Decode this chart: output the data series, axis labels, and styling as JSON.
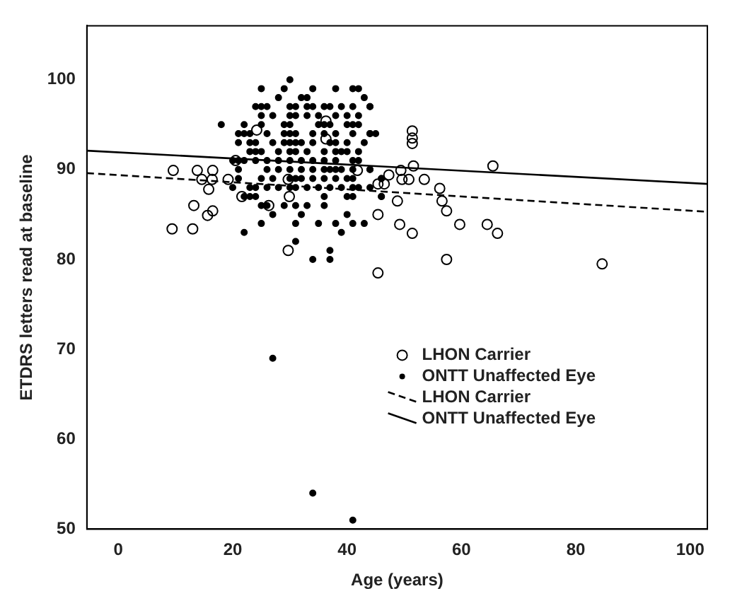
{
  "chart_data": {
    "type": "scatter",
    "xlabel": "Age (years)",
    "ylabel": "ETDRS letters read at baseline",
    "xlim": [
      -5.5,
      103
    ],
    "xticks": [
      0,
      20,
      40,
      60,
      80,
      100
    ],
    "ylim": [
      50,
      106
    ],
    "yticks": [
      50,
      60,
      70,
      80,
      90,
      100
    ],
    "grid": false,
    "legend": "bottom right",
    "series": [
      {
        "name": "LHON Carrier",
        "marker": "circle",
        "color": "#000000",
        "x": [
          9.6,
          13.8,
          16.5,
          14.6,
          16.4,
          15.8,
          19.2,
          20.5,
          13.2,
          16.5,
          15.6,
          9.4,
          13.0,
          21.6,
          26.3,
          29.7,
          29.9,
          29.7,
          24.2,
          36.3,
          36.3,
          41.8,
          45.4,
          46.5,
          47.3,
          45.4,
          45.4,
          51.4,
          51.4,
          51.4,
          51.6,
          65.5,
          49.4,
          49.6,
          50.8,
          53.5,
          56.2,
          56.6,
          57.4,
          48.8,
          49.2,
          51.4,
          59.7,
          64.5,
          66.3,
          57.4,
          84.6
        ],
        "values": [
          89.9,
          89.9,
          89.9,
          88.9,
          88.9,
          87.8,
          88.9,
          91,
          86,
          85.4,
          84.9,
          83.4,
          83.4,
          87,
          86,
          88.9,
          87,
          81,
          94.4,
          95.4,
          93.4,
          89.9,
          88.4,
          88.4,
          89.4,
          85,
          78.5,
          94.3,
          93.5,
          92.9,
          90.4,
          90.4,
          89.9,
          88.9,
          88.9,
          88.9,
          87.9,
          86.5,
          85.4,
          86.5,
          83.9,
          82.9,
          83.9,
          83.9,
          82.9,
          80,
          79.5
        ]
      },
      {
        "name": "ONTT Unaffected Eye",
        "marker": "circle",
        "color": "#000000",
        "x": [
          30,
          25,
          29,
          34,
          38,
          41,
          42,
          28,
          32,
          33,
          43,
          24,
          25,
          26,
          30,
          31,
          33,
          34,
          36,
          37,
          39,
          41,
          44,
          25,
          27,
          30,
          31,
          33,
          35,
          38,
          40,
          42,
          18,
          22,
          25,
          29,
          30,
          35,
          36,
          37,
          40,
          41,
          42,
          21,
          22,
          23,
          26,
          29,
          30,
          31,
          34,
          36,
          38,
          41,
          44,
          45,
          21,
          23,
          24,
          27,
          29,
          30,
          31,
          32,
          34,
          37,
          38,
          40,
          43,
          23,
          24,
          25,
          28,
          30,
          31,
          33,
          36,
          38,
          39,
          40,
          42,
          20,
          21,
          22,
          24,
          26,
          28,
          30,
          32,
          34,
          36,
          38,
          41,
          42,
          21,
          26,
          28,
          30,
          32,
          34,
          36,
          37,
          38,
          39,
          41,
          44,
          21,
          25,
          27,
          30,
          31,
          32,
          34,
          36,
          38,
          40,
          41,
          46,
          20,
          23,
          24,
          26,
          28,
          30,
          31,
          33,
          35,
          37,
          39,
          41,
          42,
          44,
          22,
          23,
          24,
          36,
          40,
          41,
          46,
          25,
          26,
          29,
          31,
          33,
          36,
          27,
          32,
          40,
          25,
          31,
          35,
          38,
          41,
          43,
          22,
          39,
          31,
          37,
          34,
          37,
          27,
          34,
          41,
          44,
          44,
          44,
          46,
          46
        ],
        "values": [
          100,
          99,
          99,
          99,
          99,
          99,
          99,
          98,
          98,
          98,
          98,
          97,
          97,
          97,
          97,
          97,
          97,
          97,
          97,
          97,
          97,
          97,
          97,
          96,
          96,
          96,
          96,
          96,
          96,
          96,
          96,
          96,
          95,
          95,
          95,
          95,
          95,
          95,
          95,
          95,
          95,
          95,
          95,
          94,
          94,
          94,
          94,
          94,
          94,
          94,
          94,
          94,
          94,
          94,
          94,
          94,
          93,
          93,
          93,
          93,
          93,
          93,
          93,
          93,
          93,
          93,
          93,
          93,
          93,
          92,
          92,
          92,
          92,
          92,
          92,
          92,
          92,
          92,
          92,
          92,
          92,
          91,
          91,
          91,
          91,
          91,
          91,
          91,
          91,
          91,
          91,
          91,
          91,
          91,
          90,
          90,
          90,
          90,
          90,
          90,
          90,
          90,
          90,
          90,
          90,
          90,
          89,
          89,
          89,
          89,
          89,
          89,
          89,
          89,
          89,
          89,
          89,
          89,
          88,
          88,
          88,
          88,
          88,
          88,
          88,
          88,
          88,
          88,
          88,
          88,
          88,
          88,
          87,
          87,
          87,
          87,
          87,
          87,
          87,
          86,
          86,
          86,
          86,
          86,
          86,
          85,
          85,
          85,
          84,
          84,
          84,
          84,
          84,
          84,
          83,
          83,
          82,
          81,
          80,
          80,
          69,
          54,
          51,
          97,
          94,
          90,
          89,
          87
        ]
      },
      {
        "name": "LHON Carrier",
        "type": "line",
        "marker": "none",
        "line_style": "dashed",
        "color": "#000000",
        "x": [
          -5.5,
          103
        ],
        "values": [
          89.6,
          85.3
        ]
      },
      {
        "name": "ONTT Unaffected Eye",
        "type": "line",
        "marker": "none",
        "line_style": "solid",
        "color": "#000000",
        "x": [
          -5.5,
          103
        ],
        "values": [
          92.1,
          88.4
        ]
      }
    ]
  }
}
